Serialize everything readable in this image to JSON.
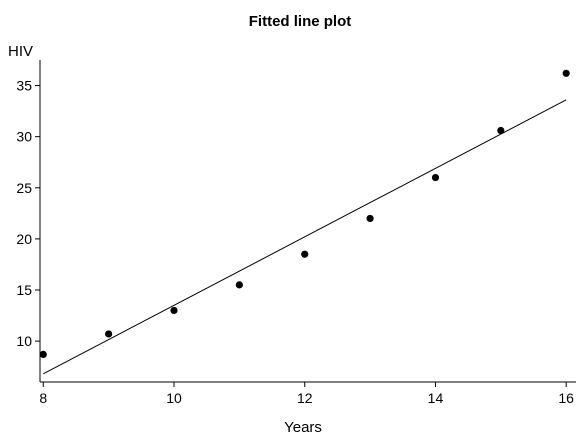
{
  "chart_data": {
    "type": "scatter",
    "title": "Fitted line plot",
    "xlabel": "Years",
    "ylabel": "HIV",
    "xlim": [
      7.95,
      16.15
    ],
    "ylim": [
      6.0,
      37.5
    ],
    "xticks": [
      8,
      10,
      12,
      14,
      16
    ],
    "yticks": [
      10,
      15,
      20,
      25,
      30,
      35
    ],
    "grid": false,
    "series": [
      {
        "x": [
          8,
          9,
          10,
          11,
          12,
          13,
          14,
          15,
          16
        ],
        "y": [
          8.7,
          10.7,
          13.0,
          15.5,
          18.5,
          22.0,
          26.0,
          30.6,
          36.2
        ]
      }
    ],
    "fit_line": {
      "x": [
        8,
        16
      ],
      "y": [
        6.8,
        33.6
      ]
    }
  }
}
